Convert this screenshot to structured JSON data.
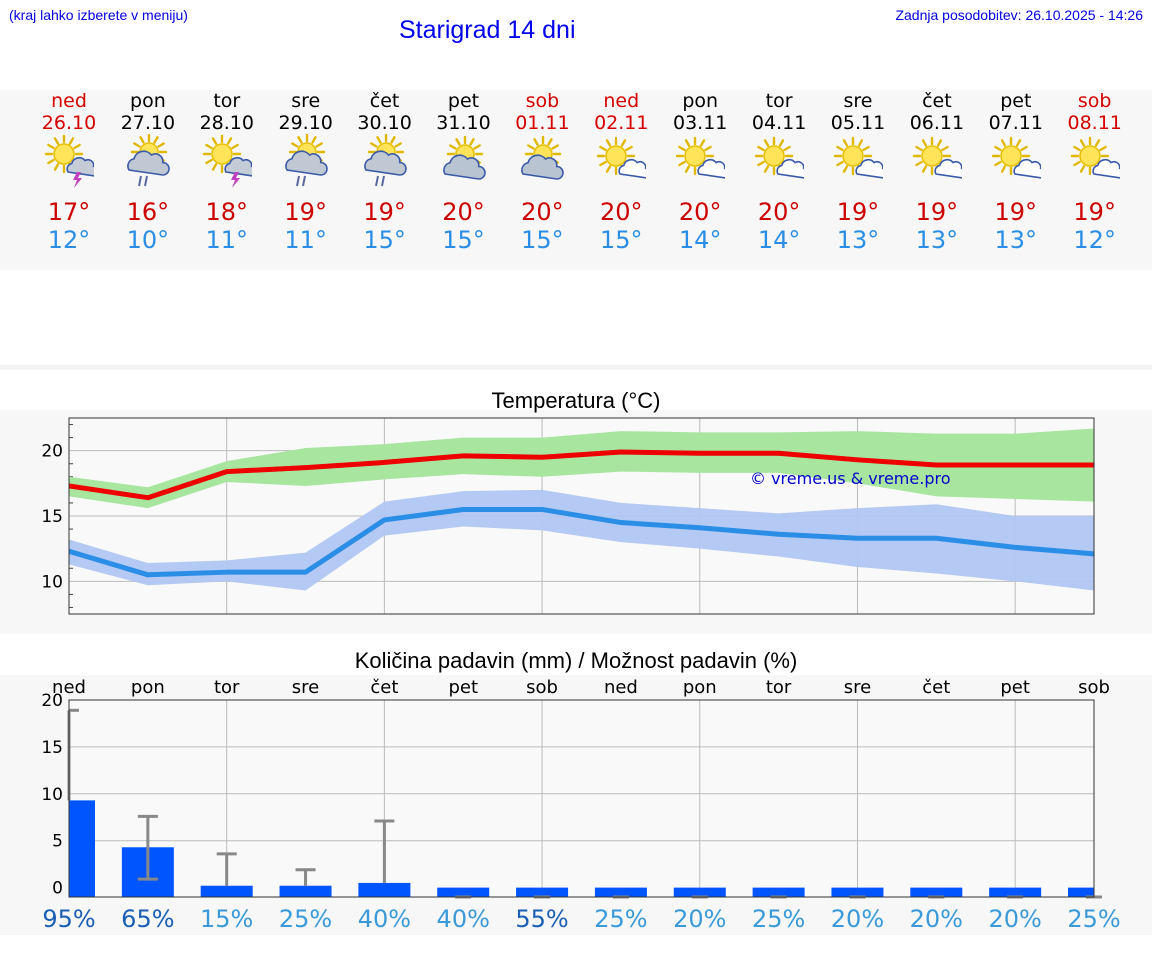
{
  "header": {
    "left_note": "(kraj lahko izberete v meniju)",
    "title": "Starigrad 14 dni",
    "updated": "Zadnja posodobitev: 26.10.2025 - 14:26"
  },
  "days": [
    {
      "name": "ned",
      "date": "26.10",
      "weekend": true,
      "icon": "sun-cloud-thunder-icon",
      "max": "17°",
      "min": "12°"
    },
    {
      "name": "pon",
      "date": "27.10",
      "weekend": false,
      "icon": "sun-cloud-rain-icon",
      "max": "16°",
      "min": "10°"
    },
    {
      "name": "tor",
      "date": "28.10",
      "weekend": false,
      "icon": "sun-cloud-thunder-icon",
      "max": "18°",
      "min": "11°"
    },
    {
      "name": "sre",
      "date": "29.10",
      "weekend": false,
      "icon": "sun-cloud-rain-icon",
      "max": "19°",
      "min": "11°"
    },
    {
      "name": "čet",
      "date": "30.10",
      "weekend": false,
      "icon": "sun-cloud-rain-icon",
      "max": "19°",
      "min": "15°"
    },
    {
      "name": "pet",
      "date": "31.10",
      "weekend": false,
      "icon": "sun-cloud-icon",
      "max": "20°",
      "min": "15°"
    },
    {
      "name": "sob",
      "date": "01.11",
      "weekend": true,
      "icon": "sun-cloud-icon",
      "max": "20°",
      "min": "15°"
    },
    {
      "name": "ned",
      "date": "02.11",
      "weekend": true,
      "icon": "sun-small-cloud-icon",
      "max": "20°",
      "min": "15°"
    },
    {
      "name": "pon",
      "date": "03.11",
      "weekend": false,
      "icon": "sun-small-cloud-icon",
      "max": "20°",
      "min": "14°"
    },
    {
      "name": "tor",
      "date": "04.11",
      "weekend": false,
      "icon": "sun-small-cloud-icon",
      "max": "20°",
      "min": "14°"
    },
    {
      "name": "sre",
      "date": "05.11",
      "weekend": false,
      "icon": "sun-small-cloud-icon",
      "max": "19°",
      "min": "13°"
    },
    {
      "name": "čet",
      "date": "06.11",
      "weekend": false,
      "icon": "sun-small-cloud-icon",
      "max": "19°",
      "min": "13°"
    },
    {
      "name": "pet",
      "date": "07.11",
      "weekend": false,
      "icon": "sun-small-cloud-icon",
      "max": "19°",
      "min": "13°"
    },
    {
      "name": "sob",
      "date": "08.11",
      "weekend": true,
      "icon": "sun-small-cloud-icon",
      "max": "19°",
      "min": "12°"
    }
  ],
  "colors": {
    "max_line": "#ee0000",
    "max_band": "#a8e6a0",
    "min_line": "#2b8ee6",
    "min_band": "#b0c6f2",
    "max_text": "#cc0000",
    "min_text": "#2b8ee6",
    "bar": "#0055ff",
    "error": "#888888",
    "pct_strong": "#1a5fb4",
    "pct_weak": "#3a9ad9"
  },
  "chart_data": [
    {
      "type": "line",
      "title": "Temperatura (°C)",
      "watermark": "© vreme.us & vreme.pro",
      "ylim": [
        7.5,
        22.5
      ],
      "yticks": [
        10,
        15,
        20
      ],
      "x": [
        0,
        1,
        2,
        3,
        4,
        5,
        6,
        7,
        8,
        9,
        10,
        11,
        12,
        13
      ],
      "xlim": [
        0,
        13
      ],
      "series": [
        {
          "name": "max",
          "values": [
            17.3,
            16.4,
            18.4,
            18.7,
            19.1,
            19.6,
            19.5,
            19.9,
            19.8,
            19.8,
            19.3,
            18.9,
            18.9,
            18.9
          ],
          "band_low": [
            16.5,
            15.6,
            17.6,
            17.3,
            17.8,
            18.2,
            18.0,
            18.4,
            18.3,
            18.3,
            17.5,
            16.5,
            16.3,
            16.1
          ],
          "band_high": [
            18.0,
            17.2,
            19.2,
            20.2,
            20.5,
            21.0,
            21.0,
            21.5,
            21.4,
            21.4,
            21.5,
            21.3,
            21.3,
            21.7
          ]
        },
        {
          "name": "min",
          "values": [
            12.3,
            10.5,
            10.7,
            10.7,
            14.7,
            15.5,
            15.5,
            14.5,
            14.1,
            13.6,
            13.3,
            13.3,
            12.6,
            12.1
          ],
          "band_low": [
            11.3,
            9.7,
            10.0,
            9.3,
            13.5,
            14.2,
            13.9,
            13.0,
            12.5,
            11.9,
            11.1,
            10.6,
            10.0,
            9.3
          ],
          "band_high": [
            13.2,
            11.4,
            11.6,
            12.2,
            16.1,
            16.9,
            17.0,
            16.0,
            15.6,
            15.2,
            15.6,
            15.9,
            15.0,
            15.0
          ]
        }
      ]
    },
    {
      "type": "bar",
      "title": "Količina padavin (mm) / Možnost padavin (%)",
      "ylim": [
        -1,
        20
      ],
      "yticks": [
        0,
        5,
        10,
        15,
        20
      ],
      "categories": [
        "ned",
        "pon",
        "tor",
        "sre",
        "čet",
        "pet",
        "sob",
        "ned",
        "pon",
        "tor",
        "sre",
        "čet",
        "pet",
        "sob"
      ],
      "values": [
        9.3,
        4.3,
        0.2,
        0.2,
        0.5,
        0,
        0,
        0,
        0,
        0,
        0,
        0,
        0,
        0
      ],
      "error_high": [
        18.9,
        7.6,
        3.6,
        1.9,
        7.1,
        0,
        0,
        0,
        0,
        0,
        0,
        0,
        0,
        0
      ],
      "error_low": [
        0,
        0.9,
        0,
        0,
        0,
        0,
        0,
        0,
        0,
        0,
        0,
        0,
        0,
        0
      ],
      "probability": [
        "95%",
        "65%",
        "15%",
        "25%",
        "40%",
        "40%",
        "55%",
        "25%",
        "20%",
        "25%",
        "20%",
        "20%",
        "20%",
        "25%"
      ],
      "probability_values": [
        95,
        65,
        15,
        25,
        40,
        40,
        55,
        25,
        20,
        25,
        20,
        20,
        20,
        25
      ]
    }
  ]
}
